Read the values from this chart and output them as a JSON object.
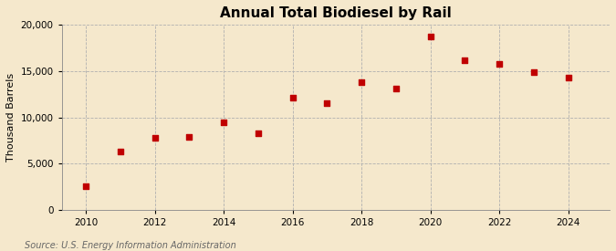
{
  "title": "Annual Total Biodiesel by Rail",
  "ylabel": "Thousand Barrels",
  "source": "Source: U.S. Energy Information Administration",
  "background_color": "#f5e8cc",
  "plot_bg_color": "#f5e8cc",
  "marker_color": "#c00000",
  "marker_size": 25,
  "years": [
    2010,
    2011,
    2012,
    2013,
    2014,
    2015,
    2016,
    2017,
    2018,
    2019,
    2020,
    2021,
    2022,
    2023,
    2024
  ],
  "values": [
    2500,
    6300,
    7800,
    7900,
    9500,
    8300,
    12100,
    11500,
    13800,
    13100,
    18700,
    16200,
    15800,
    14900,
    14300
  ],
  "ylim": [
    0,
    20000
  ],
  "yticks": [
    0,
    5000,
    10000,
    15000,
    20000
  ],
  "xticks": [
    2010,
    2012,
    2014,
    2016,
    2018,
    2020,
    2022,
    2024
  ],
  "xlim": [
    2009.3,
    2025.2
  ],
  "grid_color": "#b0b0b0",
  "grid_style": "--",
  "title_fontsize": 11,
  "label_fontsize": 8,
  "tick_fontsize": 7.5,
  "source_fontsize": 7
}
